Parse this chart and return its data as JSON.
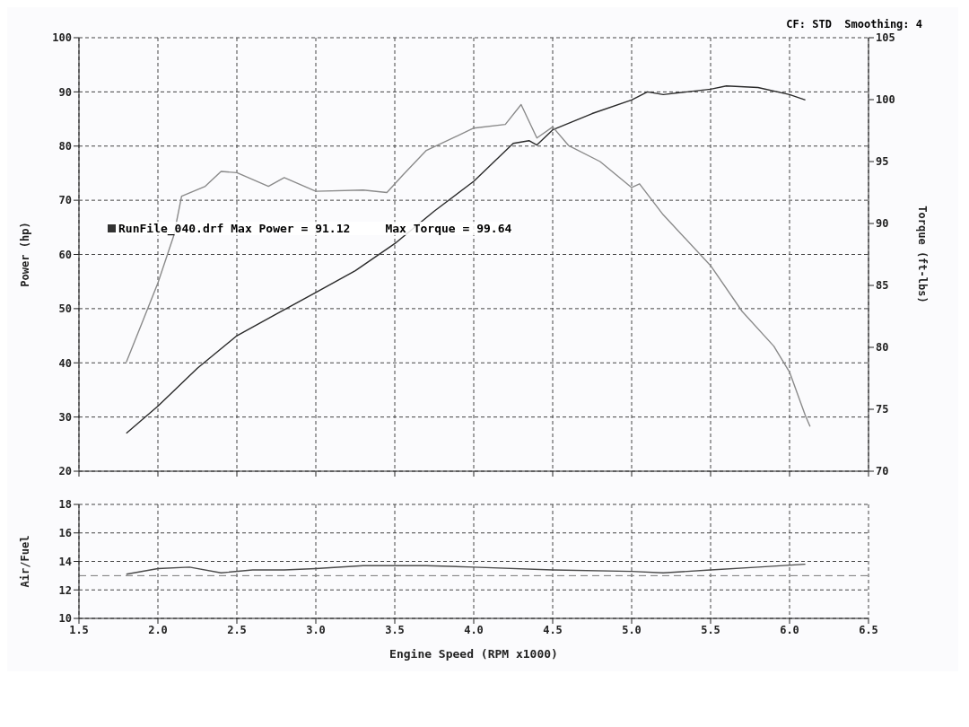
{
  "chart_data": [
    {
      "type": "line",
      "ylabel": "Power (hp)",
      "y2label": "Torque (ft-lbs)",
      "annotations": [
        "RunFile_040.drf Max Power = 91.12     Max Torque = 99.64",
        "CF: STD  Smoothing: 4"
      ],
      "xlim": [
        1.5,
        6.5
      ],
      "xticks": [
        1.5,
        2,
        2.5,
        3,
        3.5,
        4,
        4.5,
        5,
        5.5,
        6,
        6.5
      ],
      "ylim": [
        20,
        100
      ],
      "yticks": [
        20,
        30,
        40,
        50,
        60,
        70,
        80,
        90,
        100
      ],
      "y2lim": [
        70,
        105
      ],
      "y2ticks": [
        70,
        75,
        80,
        85,
        90,
        95,
        100,
        105
      ],
      "grid": true,
      "tick_labels": "y",
      "line_style": "solid",
      "series": [
        {
          "color": "#2a2a2a",
          "x": [
            1.8,
            2.0,
            2.25,
            2.5,
            2.75,
            3.0,
            3.25,
            3.5,
            3.75,
            4.0,
            4.25,
            4.35,
            4.4,
            4.5,
            4.75,
            5.0,
            5.1,
            5.2,
            5.35,
            5.5,
            5.6,
            5.8,
            6.0,
            6.1
          ],
          "values": [
            27,
            32,
            39,
            45,
            49,
            53,
            57,
            62,
            68,
            73.5,
            80.5,
            81,
            80.2,
            83,
            86,
            88.5,
            90,
            89.5,
            90,
            90.5,
            91.1,
            90.8,
            89.5,
            88.5
          ]
        },
        {
          "color": "#8a8a8a",
          "axis": "y2",
          "x": [
            1.8,
            1.9,
            2.0,
            2.1,
            2.15,
            2.3,
            2.4,
            2.5,
            2.7,
            2.8,
            3.0,
            3.3,
            3.45,
            3.55,
            3.7,
            4.0,
            4.2,
            4.3,
            4.4,
            4.5,
            4.6,
            4.8,
            5.0,
            5.05,
            5.2,
            5.5,
            5.7,
            5.9,
            6.0,
            6.1,
            6.13
          ],
          "values": [
            78.8,
            82,
            85.2,
            89,
            92.2,
            93,
            94.2,
            94.1,
            93,
            93.7,
            92.6,
            92.7,
            92.5,
            93.9,
            95.9,
            97.7,
            98,
            99.6,
            96.9,
            97.8,
            96.3,
            95,
            92.9,
            93.2,
            90.7,
            86.6,
            82.9,
            80.1,
            78,
            74.5,
            73.6
          ]
        }
      ]
    },
    {
      "type": "line",
      "ylabel": "Air/Fuel",
      "xlabel": "Engine Speed (RPM x1000)",
      "xlim": [
        1.5,
        6.5
      ],
      "xticks": [
        {
          "value": 1.5,
          "label": "1.5"
        },
        {
          "value": 2,
          "label": "2.0"
        },
        {
          "value": 2.5,
          "label": "2.5"
        },
        {
          "value": 3,
          "label": "3.0"
        },
        {
          "value": 3.5,
          "label": "3.5"
        },
        {
          "value": 4,
          "label": "4.0"
        },
        {
          "value": 4.5,
          "label": "4.5"
        },
        {
          "value": 5,
          "label": "5.0"
        },
        {
          "value": 5.5,
          "label": "5.5"
        },
        {
          "value": 6,
          "label": "6.0"
        },
        {
          "value": 6.5,
          "label": "6.5"
        }
      ],
      "ylim": [
        10,
        18
      ],
      "yticks": [
        10,
        12,
        14,
        16,
        18
      ],
      "grid": true,
      "line_style": "solid",
      "ref_lines": [
        {
          "axis": "y",
          "value": 13,
          "color": "#777777",
          "line_style": "dashed"
        }
      ],
      "series": [
        {
          "color": "#4a4a4a",
          "x": [
            1.8,
            2.0,
            2.2,
            2.4,
            2.6,
            2.8,
            3.0,
            3.3,
            3.7,
            4.0,
            4.5,
            5.0,
            5.2,
            5.5,
            5.8,
            6.1
          ],
          "values": [
            13.1,
            13.5,
            13.6,
            13.2,
            13.4,
            13.4,
            13.5,
            13.7,
            13.7,
            13.6,
            13.4,
            13.3,
            13.2,
            13.4,
            13.6,
            13.8
          ]
        }
      ]
    }
  ]
}
